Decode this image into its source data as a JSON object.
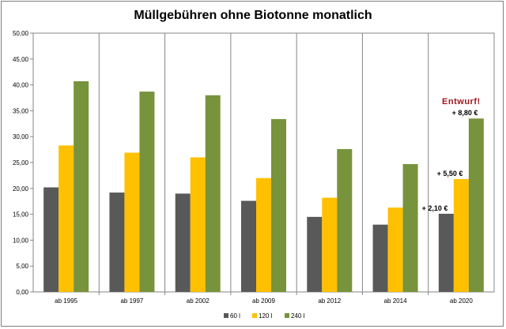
{
  "chart_data": {
    "type": "bar",
    "title": "Müllgebühren ohne Biotonne monatlich",
    "xlabel": "",
    "ylabel": "",
    "ylim": [
      0,
      50
    ],
    "y_ticks": [
      "0,00",
      "5,00",
      "10,00",
      "15,00",
      "20,00",
      "25,00",
      "30,00",
      "35,00",
      "40,00",
      "45,00",
      "50,00"
    ],
    "grid": "vertical category separators",
    "legend_position": "bottom",
    "categories": [
      "ab 1995",
      "ab 1997",
      "ab 2002",
      "ab 2009",
      "ab 2012",
      "ab 2014",
      "ab 2020"
    ],
    "series": [
      {
        "name": "60 l",
        "color": "#595959",
        "values": [
          20.2,
          19.2,
          19.0,
          17.6,
          14.5,
          13.0,
          15.1
        ]
      },
      {
        "name": "120 l",
        "color": "#ffc000",
        "values": [
          28.3,
          26.9,
          26.0,
          22.0,
          18.2,
          16.3,
          21.8
        ]
      },
      {
        "name": "240 l",
        "color": "#77933c",
        "values": [
          40.7,
          38.7,
          38.0,
          33.4,
          27.6,
          24.7,
          33.5
        ]
      }
    ],
    "annotations": [
      {
        "text": "+ 2,10 €",
        "category": "ab 2020",
        "series": 0
      },
      {
        "text": "+ 5,50 €",
        "category": "ab 2020",
        "series": 1
      },
      {
        "text": "+ 8,80 €",
        "category": "ab 2020",
        "series": 2
      }
    ],
    "stamp": {
      "text": "Entwurf!",
      "color": "#a0181d"
    }
  }
}
